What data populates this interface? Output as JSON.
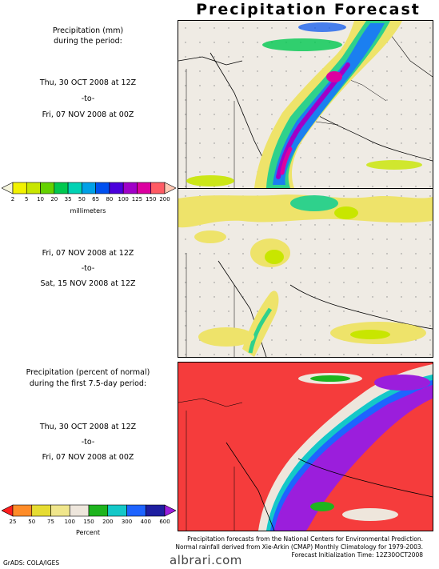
{
  "title": "Precipitation Forecast",
  "panel1": {
    "heading_line1": "Precipitation (mm)",
    "heading_line2": "during the period:",
    "start": "Thu, 30 OCT 2008 at 12Z",
    "sep": "-to-",
    "end": "Fri, 07 NOV 2008 at 00Z"
  },
  "panel2": {
    "start": "Fri, 07 NOV 2008 at 12Z",
    "sep": "-to-",
    "end": "Sat, 15 NOV 2008 at 12Z"
  },
  "panel3": {
    "heading_line1": "Precipitation (percent of normal)",
    "heading_line2": "during the first 7.5-day period:",
    "start": "Thu, 30 OCT 2008 at 12Z",
    "sep": "-to-",
    "end": "Fri, 07 NOV 2008 at 00Z"
  },
  "scale_mm": {
    "unit": "millimeters",
    "ticks": [
      "2",
      "5",
      "10",
      "20",
      "35",
      "50",
      "65",
      "80",
      "100",
      "125",
      "150",
      "200"
    ],
    "colors": [
      "#f5f5dc",
      "#f2f200",
      "#c8e600",
      "#64d200",
      "#00c850",
      "#00d2b4",
      "#00a0e6",
      "#0050f0",
      "#4b00dc",
      "#a000c8",
      "#dc00a0",
      "#ff5a64",
      "#ffc8b4"
    ]
  },
  "scale_pct": {
    "unit": "Percent",
    "ticks": [
      "25",
      "50",
      "75",
      "100",
      "150",
      "200",
      "300",
      "400",
      "600"
    ],
    "colors": [
      "#ff1e1e",
      "#ff8c28",
      "#e6dc32",
      "#f0e68c",
      "#eee6dc",
      "#1eb41e",
      "#14c8c8",
      "#1e64ff",
      "#1e1ea0",
      "#9b1edc"
    ]
  },
  "footer": {
    "line1": "Precipitation forecasts from the National Centers for Environmental Prediction.",
    "line2": "Normal rainfall derived from Xie-Arkin (CMAP) Monthly Climatology for 1979-2003.",
    "line3": "Forecast Initialization Time: 12Z30OCT2008"
  },
  "credit": "GrADS: COLA/IGES",
  "watermark": "albrari.com"
}
